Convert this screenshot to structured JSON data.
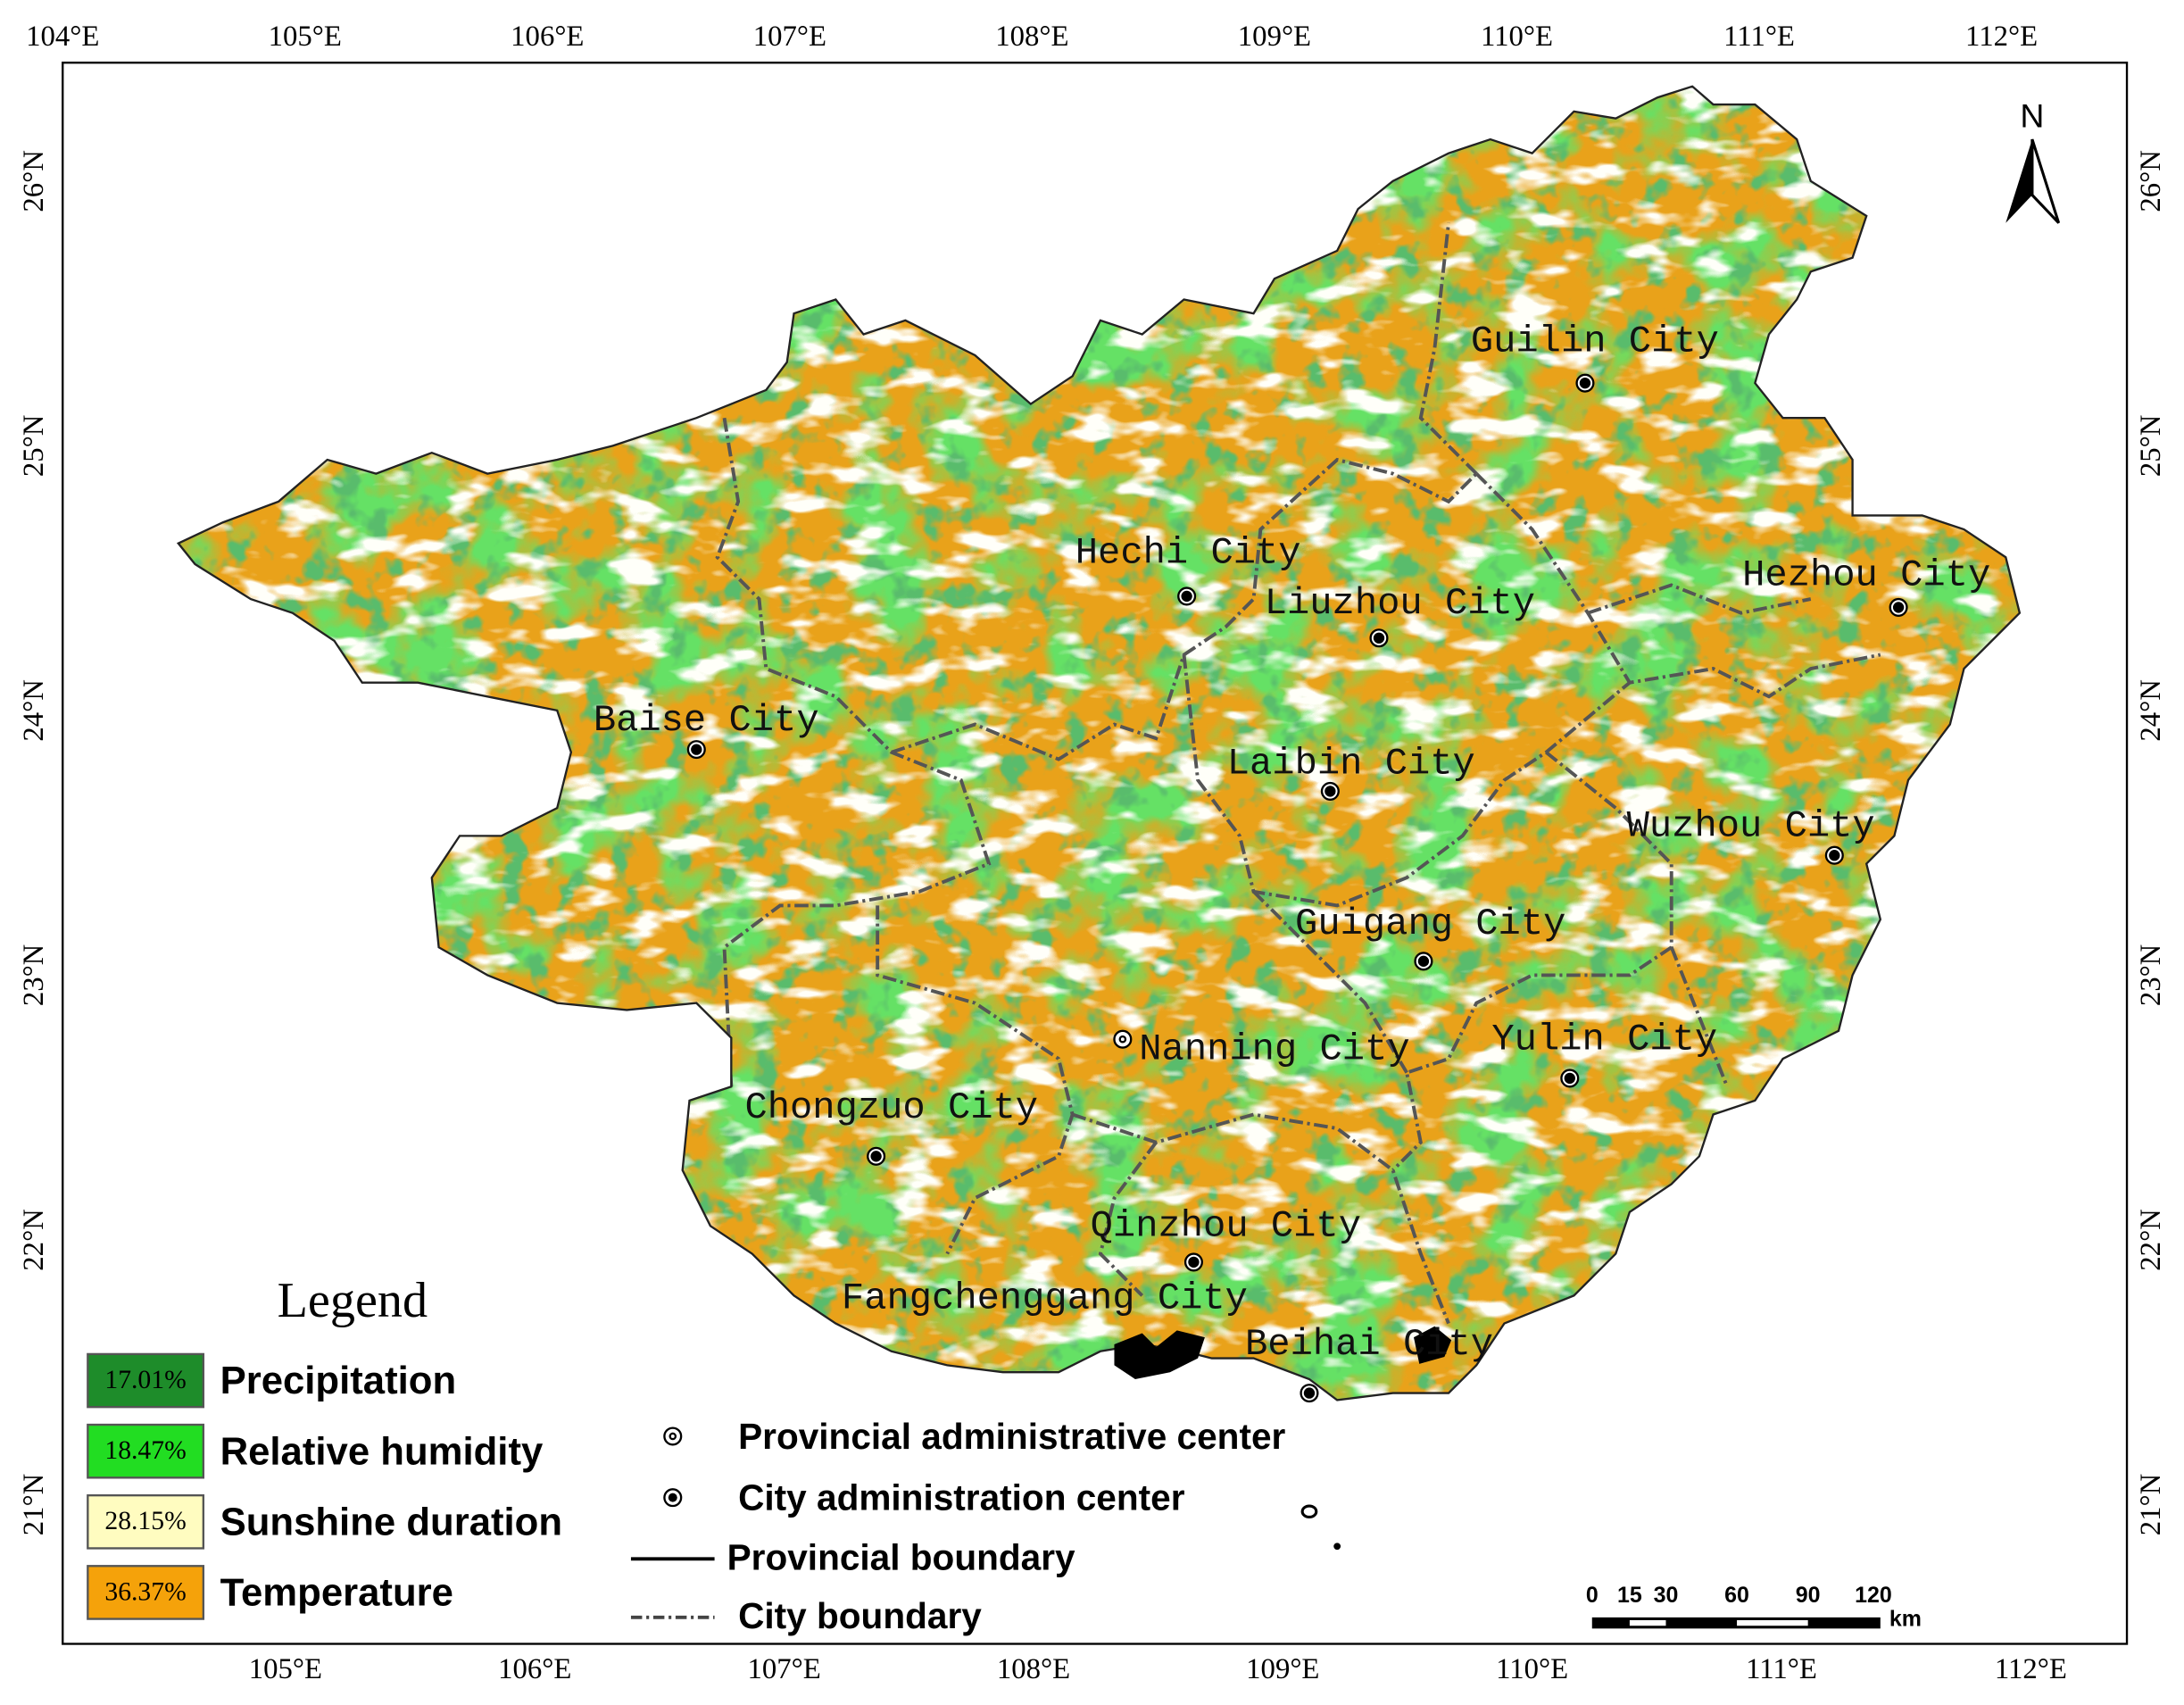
{
  "longitude_labels_top": [
    "104°E",
    "105°E",
    "106°E",
    "107°E",
    "108°E",
    "109°E",
    "110°E",
    "111°E",
    "112°E"
  ],
  "longitude_labels_bottom": [
    "105°E",
    "106°E",
    "107°E",
    "108°E",
    "109°E",
    "110°E",
    "111°E",
    "112°E"
  ],
  "latitude_labels": [
    "26°N",
    "25°N",
    "24°N",
    "23°N",
    "22°N",
    "21°N"
  ],
  "north": "N",
  "cities": [
    {
      "label": "Guilin City"
    },
    {
      "label": "Hechi City"
    },
    {
      "label": "Liuzhou City"
    },
    {
      "label": "Hezhou City"
    },
    {
      "label": "Baise City"
    },
    {
      "label": "Laibin City"
    },
    {
      "label": "Wuzhou City"
    },
    {
      "label": "Guigang City"
    },
    {
      "label": "Nanning City"
    },
    {
      "label": "Yulin City"
    },
    {
      "label": "Chongzuo City"
    },
    {
      "label": "Qinzhou City"
    },
    {
      "label": "Fangchenggang City"
    },
    {
      "label": "Beihai City"
    }
  ],
  "legend": {
    "title": "Legend",
    "items": [
      {
        "share": "17.01%",
        "label": "Precipitation",
        "color": "#1e8c2a"
      },
      {
        "share": "18.47%",
        "label": "Relative humidity",
        "color": "#22dd22"
      },
      {
        "share": "28.15%",
        "label": "Sunshine duration",
        "color": "#fffcc0"
      },
      {
        "share": "36.37%",
        "label": "Temperature",
        "color": "#f5a20a"
      }
    ]
  },
  "symbol_legend": [
    "Provincial administrative center",
    "City administration center",
    "Provincial boundary",
    "City boundary"
  ],
  "scale_bar": {
    "ticks": [
      "0",
      "15",
      "30",
      "60",
      "90",
      "120"
    ],
    "unit": "km"
  }
}
